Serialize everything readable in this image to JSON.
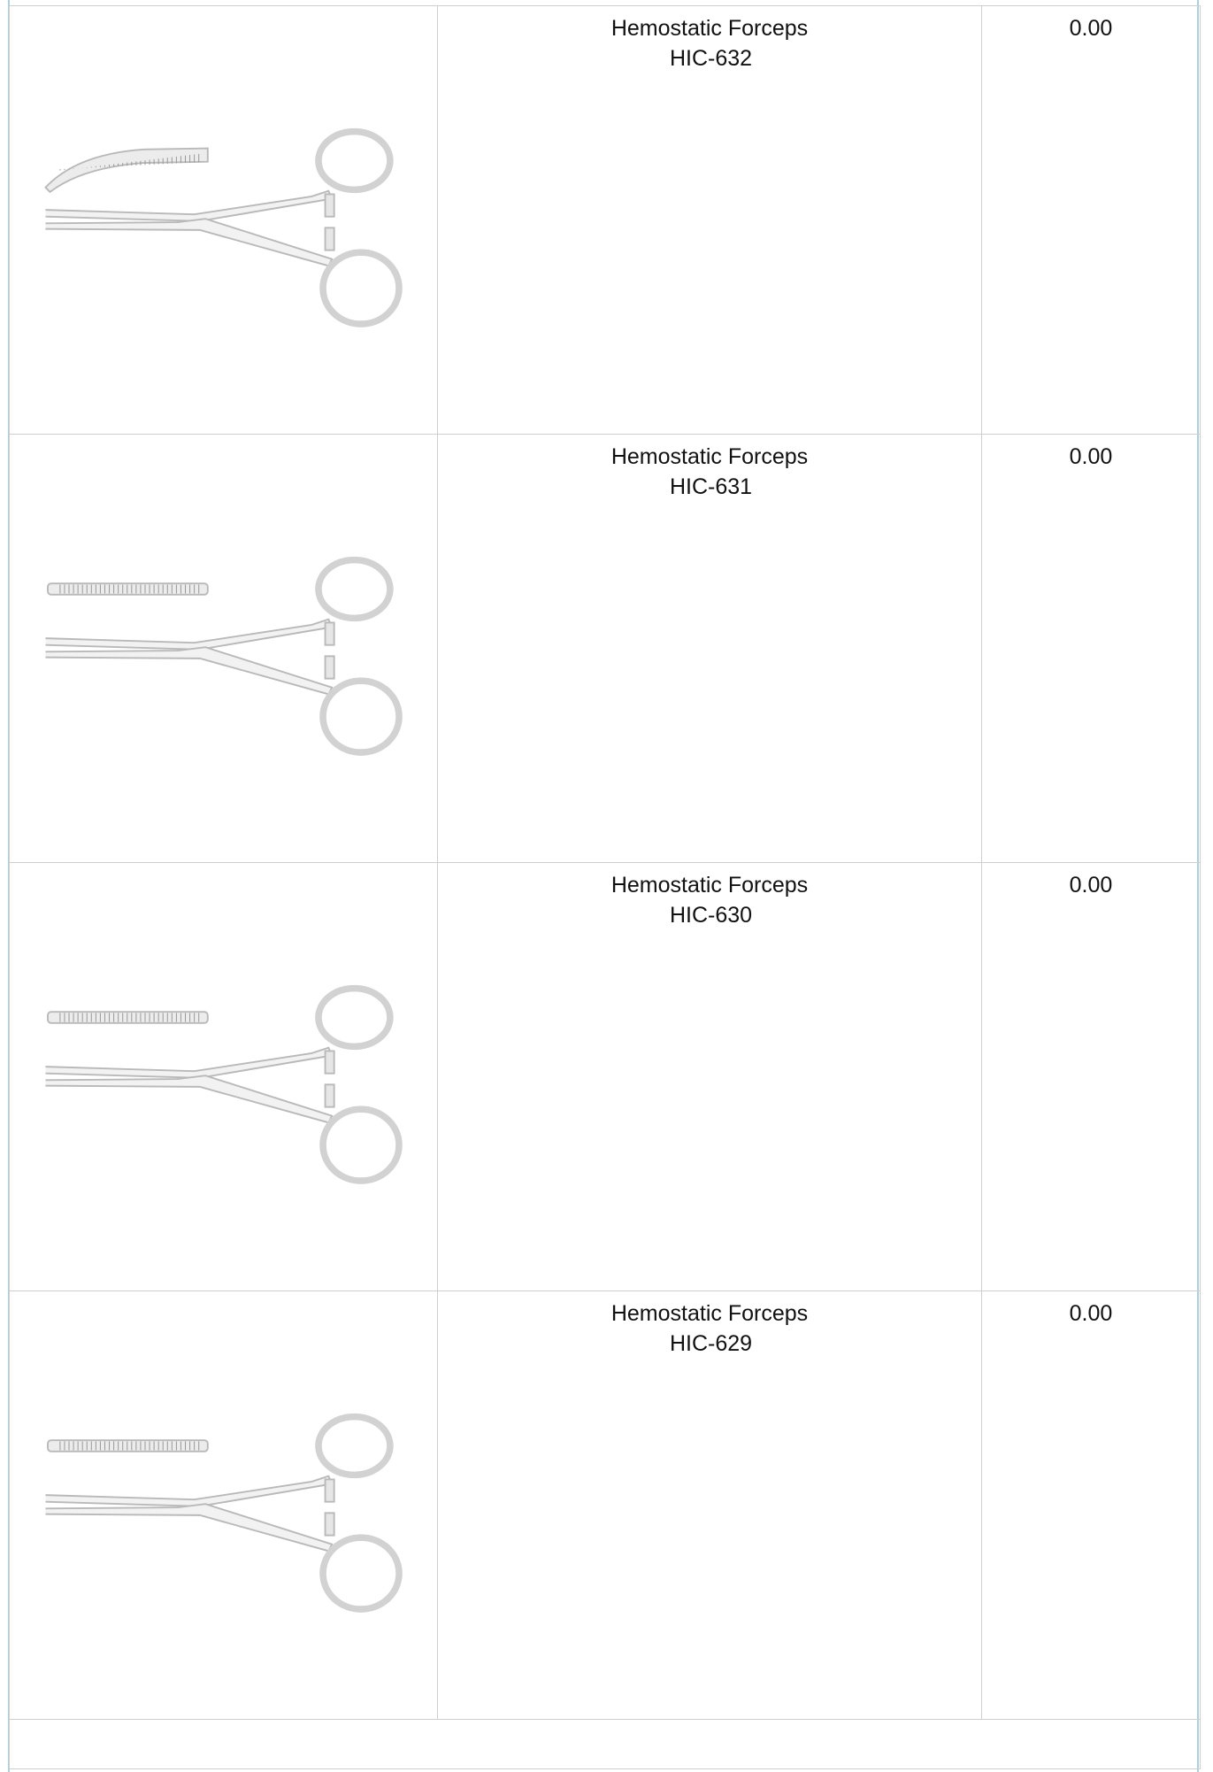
{
  "table": {
    "rows": [
      {
        "name": "Hemostatic Forceps",
        "code": "HIC-632",
        "price": "0.00"
      },
      {
        "name": "Hemostatic Forceps",
        "code": "HIC-631",
        "price": "0.00"
      },
      {
        "name": "Hemostatic Forceps",
        "code": "HIC-630",
        "price": "0.00"
      },
      {
        "name": "Hemostatic Forceps",
        "code": "HIC-629",
        "price": "0.00"
      }
    ]
  }
}
